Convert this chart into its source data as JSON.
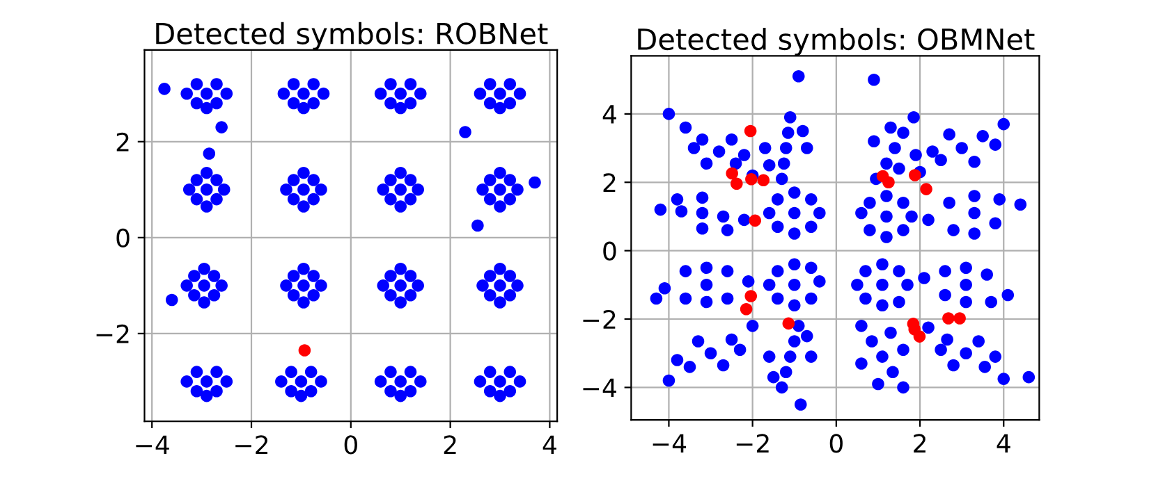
{
  "chart_data": [
    {
      "type": "scatter",
      "title": "Detected symbols: ROBNet",
      "xlim": [
        -4.15,
        4.15
      ],
      "ylim": [
        -3.83,
        3.91
      ],
      "xticks": [
        -4,
        -2,
        0,
        2,
        4
      ],
      "yticks": [
        -2,
        0,
        2
      ],
      "grid": true,
      "marker": "circle",
      "series": [
        {
          "color": "#0000ff",
          "x": [
            -3.3,
            -2.5,
            -3.1,
            -2.7,
            -3.1,
            -2.7,
            -2.9,
            -2.9,
            -1.35,
            -0.55,
            -1.15,
            -0.75,
            -1.15,
            -0.75,
            -0.95,
            -0.95,
            0.6,
            1.4,
            0.8,
            1.2,
            0.8,
            1.2,
            1.0,
            1.0,
            2.6,
            3.4,
            2.8,
            3.2,
            2.8,
            3.2,
            3.0,
            3.0,
            -3.25,
            -2.55,
            -2.9,
            -2.9,
            -3.1,
            -2.7,
            -3.1,
            -2.7,
            -2.9,
            -1.3,
            -0.6,
            -0.95,
            -0.95,
            -1.15,
            -0.75,
            -1.15,
            -0.75,
            -0.95,
            0.65,
            1.35,
            1.0,
            1.0,
            0.8,
            1.2,
            0.8,
            1.2,
            1.0,
            2.65,
            3.35,
            3.0,
            3.0,
            2.8,
            3.2,
            2.8,
            3.2,
            3.0,
            -3.3,
            -2.6,
            -2.95,
            -2.95,
            -3.15,
            -2.75,
            -3.15,
            -2.75,
            -2.95,
            -1.3,
            -0.6,
            -0.95,
            -0.95,
            -1.15,
            -0.75,
            -1.15,
            -0.75,
            -0.95,
            0.65,
            1.35,
            1.0,
            1.0,
            0.8,
            1.2,
            0.8,
            1.2,
            1.0,
            2.65,
            3.35,
            3.0,
            3.0,
            2.8,
            3.2,
            2.8,
            3.2,
            3.0,
            -3.3,
            -2.5,
            -3.1,
            -2.7,
            -3.1,
            -2.7,
            -2.9,
            -2.9,
            -1.4,
            -0.6,
            -1.2,
            -0.8,
            -1.2,
            -0.8,
            -1.0,
            -1.0,
            0.6,
            1.4,
            0.8,
            1.2,
            0.8,
            1.2,
            1.0,
            1.0,
            2.6,
            3.4,
            2.8,
            3.2,
            2.8,
            3.2,
            3.0,
            3.0,
            -3.75,
            -2.6,
            -2.85,
            2.3,
            2.55,
            3.7,
            -3.6
          ],
          "values": [
            3.0,
            3.0,
            3.2,
            3.2,
            2.8,
            2.8,
            3.0,
            2.7,
            3.0,
            3.0,
            3.2,
            3.2,
            2.8,
            2.8,
            3.0,
            2.7,
            3.0,
            3.0,
            3.2,
            3.2,
            2.8,
            2.8,
            3.0,
            2.7,
            3.0,
            3.0,
            3.2,
            3.2,
            2.8,
            2.8,
            3.0,
            2.7,
            1.0,
            1.0,
            1.35,
            0.65,
            1.2,
            1.2,
            0.8,
            0.8,
            1.0,
            1.0,
            1.0,
            1.35,
            0.65,
            1.2,
            1.2,
            0.8,
            0.8,
            1.0,
            1.0,
            1.0,
            1.35,
            0.65,
            1.2,
            1.2,
            0.8,
            0.8,
            1.0,
            1.0,
            1.0,
            1.35,
            0.65,
            1.2,
            1.2,
            0.8,
            0.8,
            1.0,
            -1.0,
            -1.0,
            -0.65,
            -1.35,
            -0.8,
            -0.8,
            -1.2,
            -1.2,
            -1.0,
            -1.0,
            -1.0,
            -0.65,
            -1.35,
            -0.8,
            -0.8,
            -1.2,
            -1.2,
            -1.0,
            -1.0,
            -1.0,
            -0.65,
            -1.35,
            -0.8,
            -0.8,
            -1.2,
            -1.2,
            -1.0,
            -1.0,
            -1.0,
            -0.65,
            -1.35,
            -0.8,
            -0.8,
            -1.2,
            -1.2,
            -1.0,
            -3.0,
            -3.0,
            -2.8,
            -2.8,
            -3.2,
            -3.2,
            -3.0,
            -3.3,
            -3.0,
            -3.0,
            -2.8,
            -2.8,
            -3.2,
            -3.2,
            -3.0,
            -3.3,
            -3.0,
            -3.0,
            -2.8,
            -2.8,
            -3.2,
            -3.2,
            -3.0,
            -3.3,
            -3.0,
            -3.0,
            -2.8,
            -2.8,
            -3.2,
            -3.2,
            -3.0,
            -3.3,
            3.1,
            2.3,
            1.75,
            2.2,
            0.25,
            1.15,
            -1.3
          ]
        },
        {
          "color": "#ff0000",
          "x": [
            -0.93
          ],
          "values": [
            -2.35
          ]
        }
      ]
    },
    {
      "type": "scatter",
      "title": "Detected symbols: OBMNet",
      "xlim": [
        -4.9,
        4.85
      ],
      "ylim": [
        -4.95,
        5.7
      ],
      "xticks": [
        -4,
        -2,
        0,
        2,
        4
      ],
      "yticks": [
        -4,
        -2,
        0,
        2,
        4
      ],
      "grid": true,
      "marker": "circle",
      "series": [
        {
          "color": "#0000ff",
          "x": [
            -2.8,
            -2.0,
            -3.6,
            -2.4,
            -3.2,
            -2.5,
            -3.1,
            -2.2,
            -3.4,
            -1.2,
            -1.1,
            -1.3,
            -1.15,
            -1.25,
            -0.7,
            -1.7,
            -0.8,
            -1.6,
            1.4,
            1.85,
            0.95,
            1.6,
            1.2,
            0.9,
            1.9,
            1.3,
            1.5,
            3.0,
            4.0,
            2.0,
            3.5,
            2.5,
            2.7,
            3.3,
            3.8,
            2.3,
            -3.2,
            -4.2,
            -2.2,
            -3.7,
            -2.7,
            -3.2,
            -3.2,
            -3.8,
            -2.6,
            -1.0,
            -1.6,
            -0.4,
            -1.0,
            -1.0,
            -1.4,
            -0.6,
            -1.4,
            -0.6,
            1.2,
            0.6,
            1.8,
            1.2,
            1.2,
            0.8,
            1.6,
            0.8,
            1.6,
            3.3,
            2.2,
            4.4,
            3.3,
            3.3,
            2.7,
            3.9,
            2.8,
            3.8,
            -3.1,
            -4.1,
            -2.1,
            -3.1,
            -3.1,
            -3.6,
            -2.6,
            -3.6,
            -2.6,
            -1.0,
            -1.6,
            -0.4,
            -1.0,
            -1.0,
            -1.4,
            -0.6,
            -1.4,
            -0.6,
            1.1,
            0.5,
            1.7,
            1.1,
            1.1,
            0.7,
            1.5,
            0.7,
            1.5,
            3.1,
            2.1,
            4.1,
            3.1,
            3.1,
            2.6,
            3.6,
            2.6,
            3.7,
            -3.0,
            -2.0,
            -4.0,
            -2.5,
            -3.5,
            -3.3,
            -2.7,
            -3.8,
            -2.3,
            -1.1,
            -0.9,
            -1.3,
            -1.0,
            -1.2,
            -0.6,
            -1.6,
            -0.7,
            -1.5,
            1.1,
            1.6,
            0.6,
            1.35,
            0.85,
            0.6,
            1.6,
            1.0,
            1.3,
            3.1,
            4.0,
            2.2,
            3.55,
            2.65,
            2.8,
            3.4,
            3.8,
            2.5,
            -0.9,
            0.9,
            -4.3,
            -4.0,
            4.6,
            -0.85
          ],
          "values": [
            2.9,
            2.2,
            3.6,
            2.55,
            3.25,
            3.25,
            2.55,
            2.8,
            3.0,
            3.0,
            3.9,
            2.1,
            3.45,
            2.55,
            3.0,
            3.0,
            3.5,
            2.5,
            3.0,
            3.9,
            2.1,
            3.45,
            2.55,
            3.2,
            2.8,
            3.6,
            2.4,
            3.0,
            3.7,
            2.3,
            3.35,
            2.65,
            3.4,
            2.6,
            3.1,
            2.9,
            1.1,
            1.2,
            0.9,
            1.15,
            1.0,
            1.55,
            0.65,
            1.5,
            0.6,
            1.1,
            1.1,
            1.1,
            1.7,
            0.5,
            1.5,
            1.5,
            0.7,
            0.7,
            1.0,
            1.1,
            1.0,
            1.6,
            0.4,
            1.4,
            1.4,
            0.6,
            0.6,
            1.1,
            0.9,
            1.35,
            1.6,
            0.5,
            1.4,
            1.5,
            0.6,
            0.8,
            -1.0,
            -1.1,
            -0.9,
            -0.5,
            -1.5,
            -0.6,
            -0.6,
            -1.4,
            -1.4,
            -1.0,
            -1.0,
            -0.9,
            -0.4,
            -1.6,
            -0.6,
            -0.5,
            -1.4,
            -1.4,
            -1.0,
            -1.0,
            -1.0,
            -0.4,
            -1.6,
            -0.6,
            -0.6,
            -1.4,
            -1.5,
            -1.0,
            -0.8,
            -1.3,
            -0.5,
            -1.5,
            -0.6,
            -0.7,
            -1.3,
            -1.5,
            -3.0,
            -2.2,
            -3.8,
            -2.6,
            -3.4,
            -2.65,
            -3.35,
            -3.2,
            -2.9,
            -3.1,
            -2.2,
            -4.0,
            -2.65,
            -3.55,
            -3.1,
            -3.1,
            -2.5,
            -3.7,
            -3.1,
            -4.0,
            -2.2,
            -3.55,
            -2.65,
            -3.3,
            -2.9,
            -3.9,
            -2.4,
            -3.0,
            -3.75,
            -2.25,
            -3.4,
            -2.6,
            -3.35,
            -2.65,
            -3.1,
            -2.9,
            5.1,
            5.0,
            -1.4,
            4.0,
            -3.7,
            -4.5
          ]
        },
        {
          "color": "#ff0000",
          "x": [
            -2.05,
            -2.49,
            -2.38,
            -2.03,
            -1.74,
            -1.94,
            1.11,
            1.25,
            1.88,
            2.15,
            -2.04,
            -2.15,
            -1.14,
            1.84,
            1.87,
            1.99,
            2.68,
            2.95
          ],
          "values": [
            3.5,
            2.26,
            1.96,
            2.09,
            2.06,
            0.88,
            2.18,
            2.0,
            2.21,
            1.8,
            -1.33,
            -1.71,
            -2.13,
            -2.14,
            -2.3,
            -2.51,
            -1.98,
            -1.98
          ]
        }
      ]
    }
  ]
}
